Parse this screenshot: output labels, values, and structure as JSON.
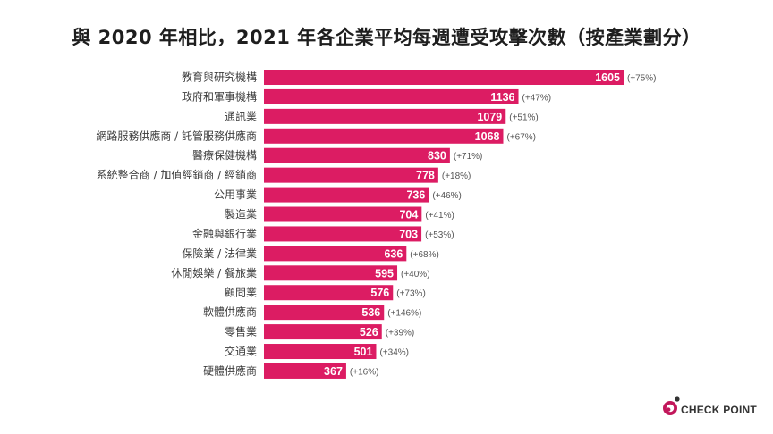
{
  "colors": {
    "bar": "#dc1c63",
    "logo_accent": "#c2175b",
    "logo_dark": "#333333"
  },
  "chart_data": {
    "type": "bar",
    "orientation": "horizontal",
    "title": "與 2020 年相比，2021 年各企業平均每週遭受攻擊次數（按產業劃分）",
    "categories": [
      "教育與研究機構",
      "政府和軍事機構",
      "通訊業",
      "網路服務供應商 / 託管服務供應商",
      "醫療保健機構",
      "系統整合商 / 加值經銷商 / 經銷商",
      "公用事業",
      "製造業",
      "金融與銀行業",
      "保險業 / 法律業",
      "休閒娛樂 / 餐旅業",
      "顧問業",
      "軟體供應商",
      "零售業",
      "交通業",
      "硬體供應商"
    ],
    "values": [
      1605,
      1136,
      1079,
      1068,
      830,
      778,
      736,
      704,
      703,
      636,
      595,
      576,
      536,
      526,
      501,
      367
    ],
    "change_labels": [
      "(+75%)",
      "(+47%)",
      "(+51%)",
      "(+67%)",
      "(+71%)",
      "(+18%)",
      "(+46%)",
      "(+41%)",
      "(+53%)",
      "(+68%)",
      "(+40%)",
      "(+73%)",
      "(+146%)",
      "(+39%)",
      "(+34%)",
      "(+16%)"
    ],
    "xlim": [
      0,
      1605
    ],
    "grid": false,
    "legend": "none"
  },
  "logo": {
    "text": "CHECK POINT"
  }
}
